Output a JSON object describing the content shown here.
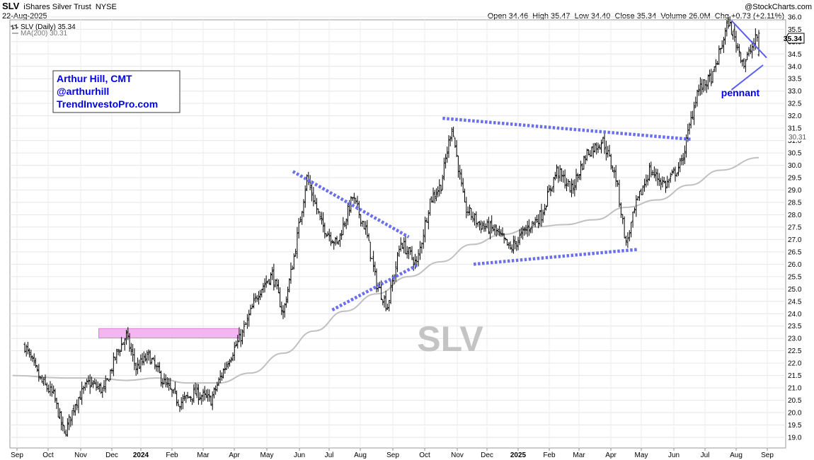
{
  "header": {
    "symbol": "SLV",
    "name": "iShares Silver Trust",
    "exchange": "NYSE",
    "date": "22-Aug-2025",
    "credit": "@StockCharts.com",
    "ohlc": "Open 34.46  High 35.47  Low 34.40  Close 35.34  Volume 26.0M  Chg +0.73 (+2.11%)"
  },
  "legend": {
    "series": "SLV (Daily) 35.34",
    "ma": "MA(200) 30.31"
  },
  "annotation_box": {
    "line1": "Arthur Hill, CMT",
    "line2": "@arthurhill",
    "line3": "TrendInvestoPro.com"
  },
  "pennant_label": "pennant",
  "watermark": "SLV",
  "colors": {
    "price": "#000000",
    "ma": "#c0c0c0",
    "trendline": "#6a6ff0",
    "pennant": "#5a5ff0",
    "text_blue": "#0000ee",
    "zone": "#f2a9ee"
  },
  "chart_data": {
    "type": "line",
    "title": "SLV iShares Silver Trust NYSE",
    "ylim": [
      19.0,
      36.0
    ],
    "y_ticks": [
      "19.0",
      "19.5",
      "20.0",
      "20.5",
      "21.0",
      "21.5",
      "22.0",
      "22.5",
      "23.0",
      "23.5",
      "24.0",
      "24.5",
      "25.0",
      "25.5",
      "26.0",
      "26.5",
      "27.0",
      "27.5",
      "28.0",
      "28.5",
      "29.0",
      "29.5",
      "30.0",
      "30.5",
      "31.0",
      "31.5",
      "32.0",
      "32.5",
      "33.0",
      "33.5",
      "34.0",
      "34.5",
      "35.0",
      "35.5",
      "36.0"
    ],
    "x_labels": [
      "Sep",
      "Oct",
      "Nov",
      "Dec",
      "2024",
      "Feb",
      "Mar",
      "Apr",
      "May",
      "Jun",
      "Jul",
      "Aug",
      "Sep",
      "Oct",
      "Nov",
      "Dec",
      "2025",
      "Feb",
      "Mar",
      "Apr",
      "May",
      "Jun",
      "Jul",
      "Aug",
      "Sep"
    ],
    "last_value_label": "35.34",
    "ma_value_label": "30.31",
    "grid": true,
    "series": [
      {
        "name": "SLV (Daily)",
        "x": [
          "Sep 2023",
          "Sep 2023",
          "Oct 2023",
          "Oct 2023",
          "Oct 2023",
          "Nov 2023",
          "Nov 2023",
          "Dec 2023",
          "Dec 2023",
          "Dec 2023",
          "Jan 2024",
          "Jan 2024",
          "Feb 2024",
          "Feb 2024",
          "Mar 2024",
          "Mar 2024",
          "Apr 2024",
          "Apr 2024",
          "May 2024",
          "May 2024",
          "May 2024",
          "Jun 2024",
          "Jun 2024",
          "Jul 2024",
          "Jul 2024",
          "Aug 2024",
          "Aug 2024",
          "Aug 2024",
          "Sep 2024",
          "Sep 2024",
          "Oct 2024",
          "Oct 2024",
          "Oct 2024",
          "Nov 2024",
          "Nov 2024",
          "Dec 2024",
          "Dec 2024",
          "Jan 2025",
          "Jan 2025",
          "Feb 2025",
          "Feb 2025",
          "Mar 2025",
          "Mar 2025",
          "Apr 2025",
          "Apr 2025",
          "Apr 2025",
          "May 2025",
          "May 2025",
          "Jun 2025",
          "Jun 2025",
          "Jul 2025",
          "Jul 2025",
          "Aug 2025",
          "Aug 2025"
        ],
        "values": [
          22.7,
          21.3,
          20.7,
          19.1,
          20.4,
          21.2,
          20.9,
          22.4,
          23.1,
          21.8,
          22.3,
          21.2,
          20.4,
          20.8,
          20.5,
          22.0,
          23.2,
          24.9,
          25.6,
          24.0,
          26.3,
          29.5,
          27.6,
          26.8,
          28.7,
          27.4,
          25.2,
          24.3,
          26.9,
          26.0,
          28.6,
          29.2,
          31.6,
          28.3,
          27.6,
          27.4,
          26.6,
          27.4,
          28.0,
          29.8,
          29.0,
          30.5,
          31.0,
          29.5,
          26.8,
          28.4,
          29.8,
          29.2,
          30.1,
          33.0,
          33.6,
          35.8,
          34.1,
          35.34
        ]
      },
      {
        "name": "MA(200)",
        "x": [
          "Sep 2023",
          "Oct 2023",
          "Nov 2023",
          "Dec 2023",
          "Jan 2024",
          "Feb 2024",
          "Mar 2024",
          "Apr 2024",
          "May 2024",
          "Jun 2024",
          "Jul 2024",
          "Aug 2024",
          "Sep 2024",
          "Oct 2024",
          "Nov 2024",
          "Dec 2024",
          "Jan 2025",
          "Feb 2025",
          "Mar 2025",
          "Apr 2025",
          "May 2025",
          "Jun 2025",
          "Jul 2025",
          "Aug 2025"
        ],
        "values": [
          21.5,
          21.4,
          21.4,
          21.3,
          21.4,
          21.2,
          21.2,
          21.6,
          22.4,
          23.3,
          24.1,
          24.8,
          25.5,
          26.1,
          26.8,
          27.2,
          27.5,
          27.6,
          27.8,
          28.3,
          28.6,
          29.2,
          29.8,
          30.31
        ]
      }
    ]
  }
}
